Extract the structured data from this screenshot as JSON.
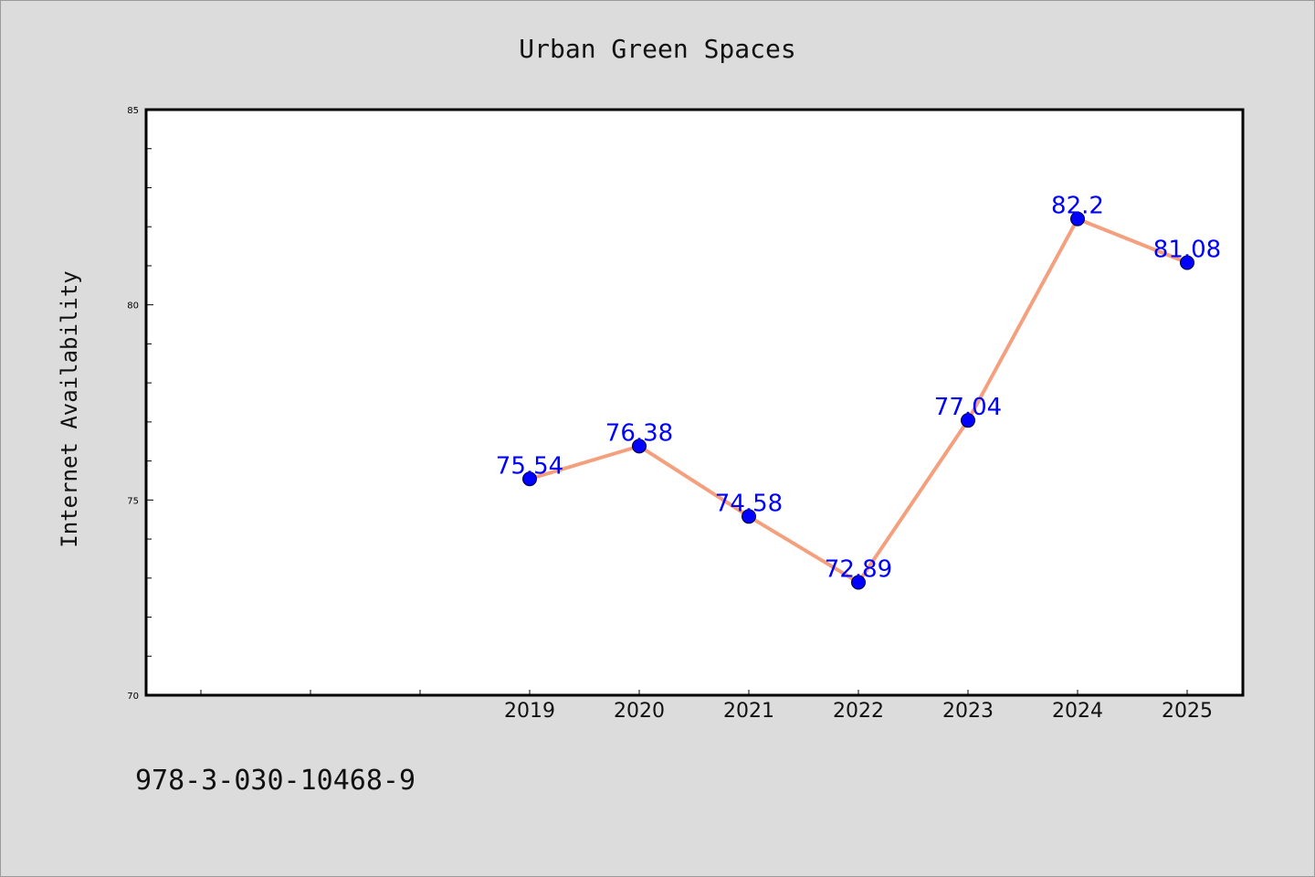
{
  "chart_data": {
    "type": "line",
    "title": "Urban Green Spaces",
    "ylabel": "Internet Availability",
    "xlabel": "",
    "x": [
      "2019",
      "2020",
      "2021",
      "2022",
      "2023",
      "2024",
      "2025"
    ],
    "series": [
      {
        "values": [
          75.54,
          76.38,
          74.58,
          72.89,
          77.04,
          82.2,
          81.08
        ],
        "labels": [
          "75.54",
          "76.38",
          "74.58",
          "72.89",
          "77.04",
          "82.2",
          "81.08"
        ]
      }
    ],
    "ylim": [
      70,
      85
    ],
    "yticks": [
      "70",
      "75",
      "80",
      "85"
    ],
    "grid": false,
    "line_color": "#f4a07e",
    "marker_color": "#0000ff",
    "label_color": "#0000ff"
  },
  "footer": {
    "isbn": "978-3-030-10468-9"
  }
}
